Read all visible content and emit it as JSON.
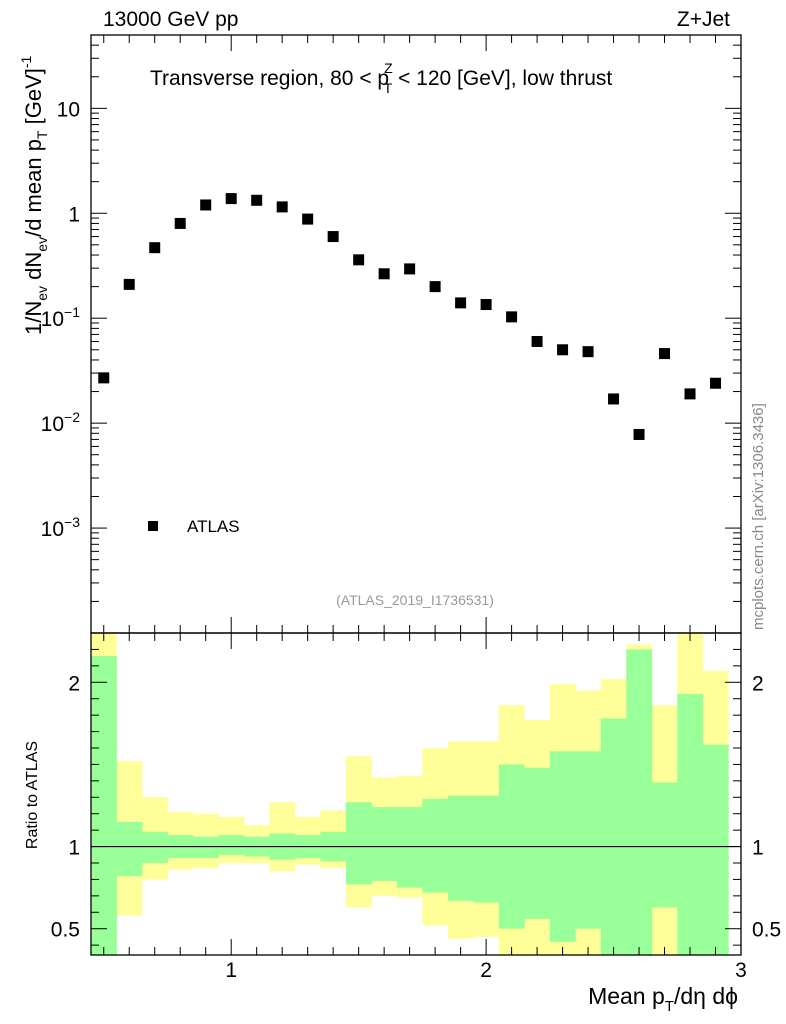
{
  "header": {
    "energy_label": "13000 GeV pp",
    "process_label": "Z+Jet"
  },
  "side_label": "mcplots.cern.ch [arXiv:1306.3436]",
  "chart_data": [
    {
      "type": "scatter",
      "panel": "main",
      "title": "Transverse region, 80 < p_T^Z < 120 [GeV], low thrust",
      "title_parts": {
        "before": "Transverse region, 80 < p",
        "sup": "Z",
        "sub": "T",
        "after": " < 120 [GeV], low thrust"
      },
      "ylabel": "1/N_ev dN_ev/d mean p_T [GeV]^-1",
      "yscale": "log",
      "ylim": [
        0.0001,
        50
      ],
      "xlim": [
        0.45,
        3.0
      ],
      "y_ticks": [
        {
          "value": 0.001,
          "label": "10",
          "exp": "−3"
        },
        {
          "value": 0.01,
          "label": "10",
          "exp": "−2"
        },
        {
          "value": 0.1,
          "label": "10",
          "exp": "−1"
        },
        {
          "value": 1,
          "label": "1",
          "exp": ""
        },
        {
          "value": 10,
          "label": "10",
          "exp": ""
        }
      ],
      "legend": {
        "position": "bottom-left",
        "entries": [
          "ATLAS"
        ]
      },
      "watermark": "(ATLAS_2019_I1736531)",
      "series": [
        {
          "name": "ATLAS",
          "marker": "square",
          "color": "#000000",
          "x": [
            0.5,
            0.6,
            0.7,
            0.8,
            0.9,
            1.0,
            1.1,
            1.2,
            1.3,
            1.4,
            1.5,
            1.6,
            1.7,
            1.8,
            1.9,
            2.0,
            2.1,
            2.2,
            2.3,
            2.4,
            2.5,
            2.6,
            2.7,
            2.8,
            2.9
          ],
          "y": [
            0.027,
            0.21,
            0.47,
            0.8,
            1.2,
            1.38,
            1.33,
            1.15,
            0.88,
            0.6,
            0.36,
            0.265,
            0.295,
            0.2,
            0.14,
            0.135,
            0.103,
            0.06,
            0.05,
            0.048,
            0.017,
            0.0078,
            0.046,
            0.019,
            0.024
          ]
        }
      ]
    },
    {
      "type": "area",
      "panel": "ratio",
      "ylabel": "Ratio to ATLAS",
      "xlabel": "Mean p_T/dη dϕ",
      "xlabel_parts": {
        "before": "Mean p",
        "sub": "T",
        "after": "/dη dϕ"
      },
      "xlim": [
        0.45,
        3.0
      ],
      "ylim": [
        0.34,
        2.3
      ],
      "x_ticks": [
        {
          "value": 1,
          "label": "1"
        },
        {
          "value": 2,
          "label": "2"
        },
        {
          "value": 3,
          "label": "3"
        }
      ],
      "y_ticks": [
        {
          "value": 0.5,
          "label": "0.5"
        },
        {
          "value": 1,
          "label": "1"
        },
        {
          "value": 2,
          "label": "2"
        }
      ],
      "reference_line": 1,
      "bin_edges": [
        0.45,
        0.55,
        0.65,
        0.75,
        0.85,
        0.95,
        1.05,
        1.15,
        1.25,
        1.35,
        1.45,
        1.55,
        1.65,
        1.75,
        1.85,
        1.95,
        2.05,
        2.15,
        2.25,
        2.35,
        2.45,
        2.55,
        2.65,
        2.75,
        2.85,
        2.95
      ],
      "bands": [
        {
          "name": "total uncertainty",
          "color": "#ffff99",
          "lo": [
            0.34,
            0.58,
            0.8,
            0.86,
            0.87,
            0.9,
            0.9,
            0.85,
            0.89,
            0.87,
            0.63,
            0.7,
            0.69,
            0.52,
            0.44,
            0.45,
            0.34,
            0.34,
            0.34,
            0.34,
            0.34,
            0.34,
            0.34,
            0.34,
            0.34
          ],
          "hi": [
            2.3,
            1.52,
            1.3,
            1.21,
            1.2,
            1.18,
            1.13,
            1.27,
            1.18,
            1.22,
            1.55,
            1.42,
            1.43,
            1.6,
            1.64,
            1.64,
            1.86,
            1.77,
            1.99,
            1.95,
            2.02,
            2.23,
            1.86,
            2.3,
            2.07
          ]
        },
        {
          "name": "statistical uncertainty",
          "color": "#99ff99",
          "lo": [
            0.34,
            0.82,
            0.9,
            0.93,
            0.93,
            0.95,
            0.94,
            0.92,
            0.93,
            0.91,
            0.77,
            0.79,
            0.75,
            0.72,
            0.67,
            0.66,
            0.5,
            0.56,
            0.42,
            0.5,
            0.34,
            0.34,
            0.63,
            0.34,
            0.34
          ],
          "hi": [
            2.16,
            1.15,
            1.09,
            1.07,
            1.06,
            1.07,
            1.06,
            1.08,
            1.07,
            1.09,
            1.27,
            1.24,
            1.24,
            1.29,
            1.31,
            1.31,
            1.5,
            1.48,
            1.58,
            1.58,
            1.78,
            2.2,
            1.39,
            1.93,
            1.62
          ]
        }
      ]
    }
  ]
}
